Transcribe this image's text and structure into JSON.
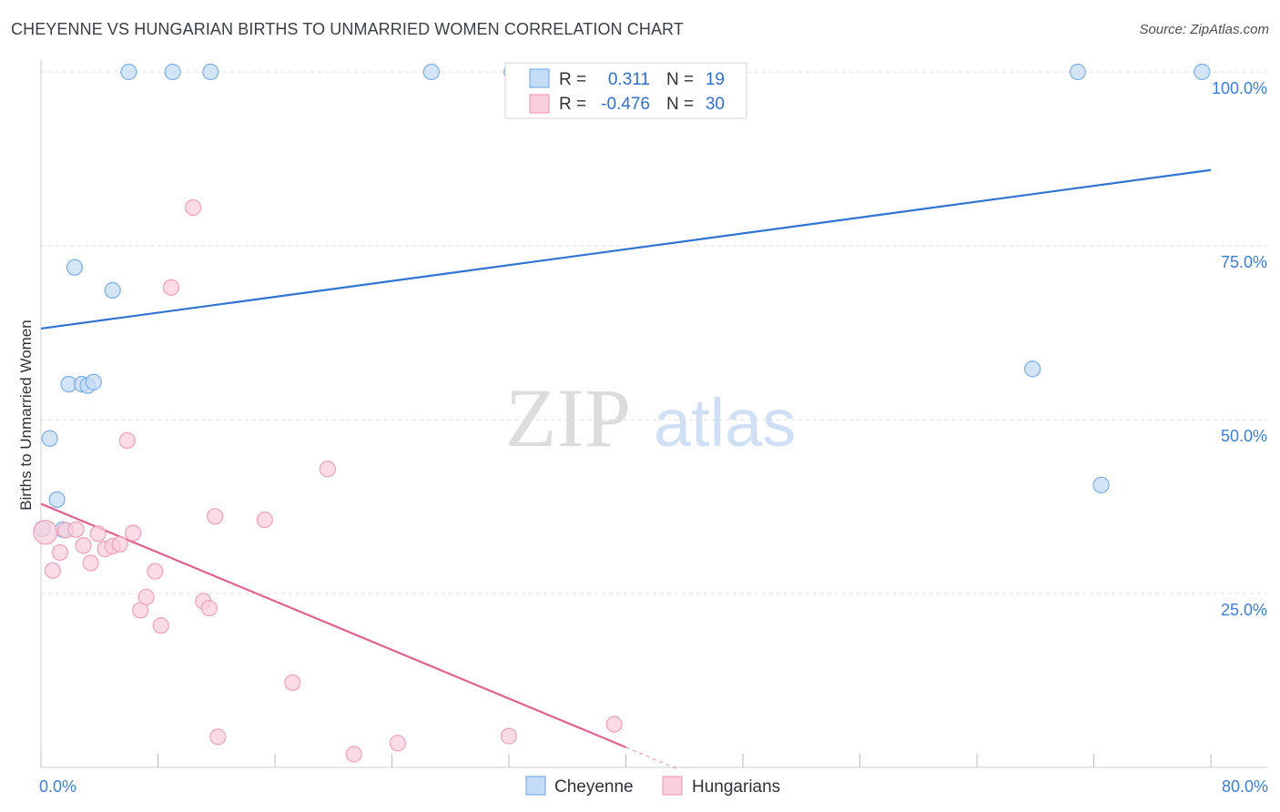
{
  "title": "CHEYENNE VS HUNGARIAN BIRTHS TO UNMARRIED WOMEN CORRELATION CHART",
  "source": "Source: ZipAtlas.com",
  "watermark": {
    "zip": "ZIP",
    "atlas": "atlas"
  },
  "chart_data": {
    "type": "scatter",
    "title": "CHEYENNE VS HUNGARIAN BIRTHS TO UNMARRIED WOMEN CORRELATION CHART",
    "xlabel": "",
    "ylabel": "Births to Unmarried Women",
    "xlim": [
      0,
      80
    ],
    "ylim": [
      0,
      100
    ],
    "x_tick_labels": {
      "left": "0.0%",
      "right": "80.0%"
    },
    "y_ticks": [
      {
        "value": 100,
        "label": "100.0%"
      },
      {
        "value": 75,
        "label": "75.0%"
      },
      {
        "value": 50,
        "label": "50.0%"
      },
      {
        "value": 25,
        "label": "25.0%"
      }
    ],
    "grid": true,
    "legend_position": "top-center",
    "series": [
      {
        "name": "Cheyenne",
        "color": "#7aaee8",
        "fill": "#c5dcf6",
        "line_color": "#2f74d0",
        "R": "0.311",
        "N": "19",
        "trend": {
          "x0": 0,
          "y0": 63.1,
          "x1": 80,
          "y1": 85.9
        },
        "points": [
          {
            "x": 0.1,
            "y": 34.3
          },
          {
            "x": 0.6,
            "y": 47.3
          },
          {
            "x": 1.1,
            "y": 38.5
          },
          {
            "x": 1.5,
            "y": 34.2
          },
          {
            "x": 1.9,
            "y": 55.1
          },
          {
            "x": 2.3,
            "y": 71.9
          },
          {
            "x": 2.8,
            "y": 55.1
          },
          {
            "x": 3.2,
            "y": 54.9
          },
          {
            "x": 3.6,
            "y": 55.4
          },
          {
            "x": 4.9,
            "y": 68.6
          },
          {
            "x": 6.0,
            "y": 100
          },
          {
            "x": 9.0,
            "y": 100
          },
          {
            "x": 11.6,
            "y": 100
          },
          {
            "x": 26.7,
            "y": 100
          },
          {
            "x": 32.2,
            "y": 100
          },
          {
            "x": 67.8,
            "y": 57.3
          },
          {
            "x": 72.5,
            "y": 40.6
          },
          {
            "x": 70.9,
            "y": 100
          },
          {
            "x": 79.4,
            "y": 100
          }
        ]
      },
      {
        "name": "Hungarians",
        "color": "#f0a0b8",
        "fill": "#f9cfdc",
        "line_color": "#e06090",
        "R": "-0.476",
        "N": "30",
        "trend": {
          "x0": 0,
          "y0": 37.9,
          "x1": 40.0,
          "y1": 2.9,
          "dash_to_x": 43.5,
          "dash_to_y": -0.2
        },
        "points": [
          {
            "x": 0.3,
            "y": 33.8,
            "big": true
          },
          {
            "x": 0.8,
            "y": 28.3
          },
          {
            "x": 1.3,
            "y": 30.9
          },
          {
            "x": 1.7,
            "y": 34.1
          },
          {
            "x": 2.4,
            "y": 34.2
          },
          {
            "x": 2.9,
            "y": 31.9
          },
          {
            "x": 3.4,
            "y": 29.4
          },
          {
            "x": 3.9,
            "y": 33.6
          },
          {
            "x": 4.4,
            "y": 31.4
          },
          {
            "x": 4.9,
            "y": 31.8
          },
          {
            "x": 5.4,
            "y": 32.1
          },
          {
            "x": 5.9,
            "y": 47.0
          },
          {
            "x": 6.3,
            "y": 33.7
          },
          {
            "x": 6.8,
            "y": 22.6
          },
          {
            "x": 7.2,
            "y": 24.5
          },
          {
            "x": 7.8,
            "y": 28.2
          },
          {
            "x": 8.2,
            "y": 20.4
          },
          {
            "x": 8.9,
            "y": 69.0
          },
          {
            "x": 10.4,
            "y": 80.5
          },
          {
            "x": 11.1,
            "y": 23.9
          },
          {
            "x": 11.5,
            "y": 22.9
          },
          {
            "x": 11.9,
            "y": 36.1
          },
          {
            "x": 12.1,
            "y": 4.4
          },
          {
            "x": 15.3,
            "y": 35.6
          },
          {
            "x": 17.2,
            "y": 12.2
          },
          {
            "x": 19.6,
            "y": 42.9
          },
          {
            "x": 21.4,
            "y": 1.9
          },
          {
            "x": 24.4,
            "y": 3.5
          },
          {
            "x": 32.0,
            "y": 4.5
          },
          {
            "x": 39.2,
            "y": 6.2
          }
        ]
      }
    ]
  }
}
